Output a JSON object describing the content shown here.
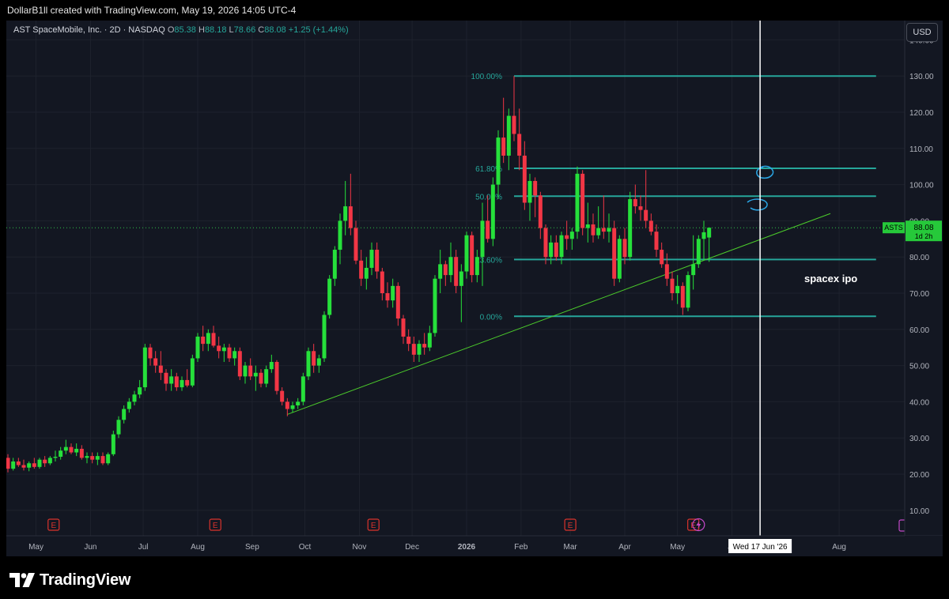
{
  "header": {
    "attribution": "DollarB1ll created with TradingView.com, May 19, 2026 14:05 UTC-4"
  },
  "legend": {
    "symbol": "AST SpaceMobile, Inc. · 2D · NASDAQ",
    "open_label": "O",
    "open": "85.38",
    "high_label": "H",
    "high": "88.18",
    "low_label": "L",
    "low": "78.66",
    "close_label": "C",
    "close": "88.08",
    "change": "+1.25 (+1.44%)"
  },
  "currency_button": "USD",
  "price_badge": {
    "ticker": "ASTS",
    "price": "88.08",
    "countdown": "1d 2h"
  },
  "crosshair_date": "Wed 17 Jun '26",
  "annotation": "spacex ipo",
  "footer": {
    "brand": "TradingView"
  },
  "colors": {
    "background": "#131722",
    "up": "#26e03b",
    "down": "#f23645",
    "fib": "#26a69a",
    "trendline": "#4ccd2b",
    "grid": "#1e222d"
  },
  "chart_data": {
    "type": "candlestick",
    "symbol": "ASTS",
    "y_axis": {
      "range": [
        0,
        145
      ],
      "ticks": [
        10,
        20,
        30,
        40,
        50,
        60,
        70,
        80,
        90,
        100,
        110,
        120,
        130,
        140
      ],
      "tick_format": "0.00"
    },
    "x_axis": {
      "range": [
        "2025-04-15",
        "2026-08-23"
      ],
      "ticks": [
        {
          "date": "2025-05-01",
          "label": "May"
        },
        {
          "date": "2025-06-01",
          "label": "Jun"
        },
        {
          "date": "2025-07-01",
          "label": "Jul"
        },
        {
          "date": "2025-08-01",
          "label": "Aug"
        },
        {
          "date": "2025-09-01",
          "label": "Sep"
        },
        {
          "date": "2025-10-01",
          "label": "Oct"
        },
        {
          "date": "2025-11-01",
          "label": "Nov"
        },
        {
          "date": "2025-12-01",
          "label": "Dec"
        },
        {
          "date": "2026-01-01",
          "label": "2026"
        },
        {
          "date": "2026-02-01",
          "label": "Feb"
        },
        {
          "date": "2026-03-01",
          "label": "Mar"
        },
        {
          "date": "2026-04-01",
          "label": "Apr"
        },
        {
          "date": "2026-05-01",
          "label": "May"
        },
        {
          "date": "2026-06-01",
          "label": "Ju"
        },
        {
          "date": "2026-08-01",
          "label": "Aug"
        }
      ]
    },
    "candles": [
      {
        "date": "2025-04-15",
        "o": 24.5,
        "h": 25.5,
        "l": 20.5,
        "c": 21.5
      },
      {
        "date": "2025-04-18",
        "o": 21.5,
        "h": 24.5,
        "l": 21.0,
        "c": 23.5
      },
      {
        "date": "2025-04-21",
        "o": 23.5,
        "h": 24.5,
        "l": 22.0,
        "c": 22.5
      },
      {
        "date": "2025-04-24",
        "o": 22.5,
        "h": 24.0,
        "l": 21.0,
        "c": 21.8
      },
      {
        "date": "2025-04-27",
        "o": 21.8,
        "h": 23.5,
        "l": 20.8,
        "c": 23.0
      },
      {
        "date": "2025-04-30",
        "o": 23.0,
        "h": 24.5,
        "l": 21.5,
        "c": 22.0
      },
      {
        "date": "2025-05-03",
        "o": 22.0,
        "h": 24.5,
        "l": 21.5,
        "c": 24.0
      },
      {
        "date": "2025-05-06",
        "o": 24.0,
        "h": 25.0,
        "l": 22.0,
        "c": 23.0
      },
      {
        "date": "2025-05-09",
        "o": 23.0,
        "h": 25.0,
        "l": 22.5,
        "c": 24.5
      },
      {
        "date": "2025-05-12",
        "o": 24.5,
        "h": 26.5,
        "l": 23.5,
        "c": 24.8
      },
      {
        "date": "2025-05-15",
        "o": 24.8,
        "h": 27.5,
        "l": 24.0,
        "c": 26.5
      },
      {
        "date": "2025-05-18",
        "o": 26.5,
        "h": 29.5,
        "l": 25.5,
        "c": 27.5
      },
      {
        "date": "2025-05-21",
        "o": 27.5,
        "h": 28.5,
        "l": 25.5,
        "c": 26.0
      },
      {
        "date": "2025-05-24",
        "o": 26.0,
        "h": 28.5,
        "l": 25.0,
        "c": 27.0
      },
      {
        "date": "2025-05-27",
        "o": 27.0,
        "h": 28.0,
        "l": 24.0,
        "c": 24.5
      },
      {
        "date": "2025-05-30",
        "o": 24.5,
        "h": 26.0,
        "l": 23.0,
        "c": 25.0
      },
      {
        "date": "2025-06-02",
        "o": 25.0,
        "h": 26.0,
        "l": 23.0,
        "c": 24.0
      },
      {
        "date": "2025-06-05",
        "o": 24.0,
        "h": 26.0,
        "l": 22.5,
        "c": 25.0
      },
      {
        "date": "2025-06-08",
        "o": 25.0,
        "h": 26.0,
        "l": 22.5,
        "c": 23.0
      },
      {
        "date": "2025-06-11",
        "o": 23.0,
        "h": 26.0,
        "l": 22.5,
        "c": 25.5
      },
      {
        "date": "2025-06-14",
        "o": 25.5,
        "h": 32.0,
        "l": 25.0,
        "c": 31.0
      },
      {
        "date": "2025-06-17",
        "o": 31.0,
        "h": 36.0,
        "l": 30.0,
        "c": 35.0
      },
      {
        "date": "2025-06-20",
        "o": 35.0,
        "h": 39.0,
        "l": 34.0,
        "c": 38.0
      },
      {
        "date": "2025-06-23",
        "o": 38.0,
        "h": 41.0,
        "l": 37.0,
        "c": 40.0
      },
      {
        "date": "2025-06-26",
        "o": 40.0,
        "h": 43.0,
        "l": 39.0,
        "c": 42.0
      },
      {
        "date": "2025-06-29",
        "o": 42.0,
        "h": 46.0,
        "l": 41.0,
        "c": 44.0
      },
      {
        "date": "2025-07-02",
        "o": 44.0,
        "h": 56.0,
        "l": 43.0,
        "c": 55.0
      },
      {
        "date": "2025-07-05",
        "o": 55.0,
        "h": 56.0,
        "l": 50.0,
        "c": 52.0
      },
      {
        "date": "2025-07-08",
        "o": 52.0,
        "h": 54.0,
        "l": 48.0,
        "c": 50.0
      },
      {
        "date": "2025-07-11",
        "o": 50.0,
        "h": 54.0,
        "l": 46.0,
        "c": 48.0
      },
      {
        "date": "2025-07-14",
        "o": 48.0,
        "h": 49.0,
        "l": 43.0,
        "c": 45.0
      },
      {
        "date": "2025-07-17",
        "o": 45.0,
        "h": 49.0,
        "l": 43.0,
        "c": 47.0
      },
      {
        "date": "2025-07-20",
        "o": 47.0,
        "h": 48.0,
        "l": 43.0,
        "c": 44.0
      },
      {
        "date": "2025-07-23",
        "o": 44.0,
        "h": 47.0,
        "l": 43.0,
        "c": 46.0
      },
      {
        "date": "2025-07-26",
        "o": 46.0,
        "h": 49.0,
        "l": 44.0,
        "c": 44.5
      },
      {
        "date": "2025-07-29",
        "o": 44.5,
        "h": 53.0,
        "l": 44.0,
        "c": 52.0
      },
      {
        "date": "2025-08-01",
        "o": 52.0,
        "h": 59.0,
        "l": 51.0,
        "c": 58.0
      },
      {
        "date": "2025-08-04",
        "o": 58.0,
        "h": 61.0,
        "l": 54.0,
        "c": 56.0
      },
      {
        "date": "2025-08-07",
        "o": 56.0,
        "h": 60.0,
        "l": 54.0,
        "c": 59.0
      },
      {
        "date": "2025-08-10",
        "o": 59.0,
        "h": 61.0,
        "l": 55.0,
        "c": 55.5
      },
      {
        "date": "2025-08-13",
        "o": 55.5,
        "h": 58.0,
        "l": 52.0,
        "c": 54.0
      },
      {
        "date": "2025-08-16",
        "o": 54.0,
        "h": 56.0,
        "l": 51.0,
        "c": 55.0
      },
      {
        "date": "2025-08-19",
        "o": 55.0,
        "h": 56.0,
        "l": 51.0,
        "c": 52.0
      },
      {
        "date": "2025-08-22",
        "o": 52.0,
        "h": 55.0,
        "l": 50.0,
        "c": 54.0
      },
      {
        "date": "2025-08-25",
        "o": 54.0,
        "h": 55.0,
        "l": 46.0,
        "c": 47.0
      },
      {
        "date": "2025-08-28",
        "o": 47.0,
        "h": 51.0,
        "l": 45.0,
        "c": 50.0
      },
      {
        "date": "2025-08-31",
        "o": 50.0,
        "h": 52.0,
        "l": 46.0,
        "c": 47.0
      },
      {
        "date": "2025-09-03",
        "o": 47.0,
        "h": 50.0,
        "l": 43.0,
        "c": 48.0
      },
      {
        "date": "2025-09-06",
        "o": 48.0,
        "h": 49.0,
        "l": 44.0,
        "c": 45.0
      },
      {
        "date": "2025-09-09",
        "o": 45.0,
        "h": 50.0,
        "l": 44.0,
        "c": 49.0
      },
      {
        "date": "2025-09-12",
        "o": 49.0,
        "h": 53.0,
        "l": 48.0,
        "c": 51.0
      },
      {
        "date": "2025-09-15",
        "o": 51.0,
        "h": 51.5,
        "l": 42.0,
        "c": 43.0
      },
      {
        "date": "2025-09-18",
        "o": 43.0,
        "h": 44.0,
        "l": 39.0,
        "c": 40.0
      },
      {
        "date": "2025-09-21",
        "o": 40.0,
        "h": 41.0,
        "l": 36.0,
        "c": 38.0
      },
      {
        "date": "2025-09-24",
        "o": 38.0,
        "h": 40.0,
        "l": 37.0,
        "c": 39.0
      },
      {
        "date": "2025-09-27",
        "o": 39.0,
        "h": 41.0,
        "l": 38.0,
        "c": 40.0
      },
      {
        "date": "2025-09-30",
        "o": 40.0,
        "h": 48.0,
        "l": 39.0,
        "c": 47.0
      },
      {
        "date": "2025-10-03",
        "o": 47.0,
        "h": 55.0,
        "l": 46.0,
        "c": 54.0
      },
      {
        "date": "2025-10-06",
        "o": 54.0,
        "h": 56.0,
        "l": 48.0,
        "c": 50.0
      },
      {
        "date": "2025-10-09",
        "o": 50.0,
        "h": 53.0,
        "l": 48.0,
        "c": 52.0
      },
      {
        "date": "2025-10-12",
        "o": 52.0,
        "h": 65.0,
        "l": 51.0,
        "c": 64.0
      },
      {
        "date": "2025-10-15",
        "o": 64.0,
        "h": 75.0,
        "l": 63.0,
        "c": 74.0
      },
      {
        "date": "2025-10-18",
        "o": 74.0,
        "h": 83.0,
        "l": 72.0,
        "c": 82.0
      },
      {
        "date": "2025-10-21",
        "o": 82.0,
        "h": 92.0,
        "l": 78.0,
        "c": 90.0
      },
      {
        "date": "2025-10-24",
        "o": 90.0,
        "h": 101.0,
        "l": 86.0,
        "c": 94.0
      },
      {
        "date": "2025-10-27",
        "o": 94.0,
        "h": 103.0,
        "l": 86.0,
        "c": 88.0
      },
      {
        "date": "2025-10-30",
        "o": 88.0,
        "h": 90.0,
        "l": 78.0,
        "c": 79.0
      },
      {
        "date": "2025-11-02",
        "o": 79.0,
        "h": 82.0,
        "l": 72.0,
        "c": 74.0
      },
      {
        "date": "2025-11-05",
        "o": 74.0,
        "h": 80.0,
        "l": 71.0,
        "c": 77.0
      },
      {
        "date": "2025-11-08",
        "o": 77.0,
        "h": 84.0,
        "l": 75.0,
        "c": 82.0
      },
      {
        "date": "2025-11-11",
        "o": 82.0,
        "h": 84.0,
        "l": 74.0,
        "c": 76.0
      },
      {
        "date": "2025-11-14",
        "o": 76.0,
        "h": 77.0,
        "l": 68.0,
        "c": 70.0
      },
      {
        "date": "2025-11-17",
        "o": 70.0,
        "h": 73.0,
        "l": 66.0,
        "c": 68.0
      },
      {
        "date": "2025-11-20",
        "o": 68.0,
        "h": 74.0,
        "l": 66.0,
        "c": 72.0
      },
      {
        "date": "2025-11-23",
        "o": 72.0,
        "h": 73.0,
        "l": 61.0,
        "c": 63.0
      },
      {
        "date": "2025-11-26",
        "o": 63.0,
        "h": 64.0,
        "l": 56.0,
        "c": 58.0
      },
      {
        "date": "2025-11-29",
        "o": 58.0,
        "h": 60.0,
        "l": 54.0,
        "c": 56.0
      },
      {
        "date": "2025-12-02",
        "o": 56.0,
        "h": 58.0,
        "l": 51.0,
        "c": 53.0
      },
      {
        "date": "2025-12-05",
        "o": 53.0,
        "h": 57.0,
        "l": 51.0,
        "c": 56.0
      },
      {
        "date": "2025-12-08",
        "o": 56.0,
        "h": 59.0,
        "l": 53.0,
        "c": 55.0
      },
      {
        "date": "2025-12-11",
        "o": 55.0,
        "h": 61.0,
        "l": 54.0,
        "c": 59.0
      },
      {
        "date": "2025-12-14",
        "o": 59.0,
        "h": 75.0,
        "l": 58.0,
        "c": 74.0
      },
      {
        "date": "2025-12-17",
        "o": 74.0,
        "h": 82.0,
        "l": 70.0,
        "c": 78.0
      },
      {
        "date": "2025-12-20",
        "o": 78.0,
        "h": 79.0,
        "l": 72.0,
        "c": 75.0
      },
      {
        "date": "2025-12-23",
        "o": 75.0,
        "h": 84.0,
        "l": 73.0,
        "c": 80.0
      },
      {
        "date": "2025-12-26",
        "o": 80.0,
        "h": 82.0,
        "l": 70.0,
        "c": 72.0
      },
      {
        "date": "2025-12-29",
        "o": 72.0,
        "h": 78.0,
        "l": 62.0,
        "c": 76.0
      },
      {
        "date": "2026-01-01",
        "o": 76.0,
        "h": 87.0,
        "l": 74.0,
        "c": 86.0
      },
      {
        "date": "2026-01-04",
        "o": 86.0,
        "h": 87.0,
        "l": 73.0,
        "c": 75.0
      },
      {
        "date": "2026-01-07",
        "o": 75.0,
        "h": 82.0,
        "l": 73.0,
        "c": 80.0
      },
      {
        "date": "2026-01-10",
        "o": 80.0,
        "h": 95.0,
        "l": 72.0,
        "c": 90.0
      },
      {
        "date": "2026-01-13",
        "o": 90.0,
        "h": 97.0,
        "l": 84.0,
        "c": 85.0
      },
      {
        "date": "2026-01-16",
        "o": 85.0,
        "h": 102.0,
        "l": 83.0,
        "c": 100.0
      },
      {
        "date": "2026-01-19",
        "o": 100.0,
        "h": 115.0,
        "l": 96.0,
        "c": 113.0
      },
      {
        "date": "2026-01-22",
        "o": 113.0,
        "h": 124.0,
        "l": 106.0,
        "c": 108.0
      },
      {
        "date": "2026-01-25",
        "o": 108.0,
        "h": 121.0,
        "l": 104.0,
        "c": 119.0
      },
      {
        "date": "2026-01-28",
        "o": 119.0,
        "h": 130.0,
        "l": 112.0,
        "c": 114.0
      },
      {
        "date": "2026-01-31",
        "o": 114.0,
        "h": 121.0,
        "l": 104.0,
        "c": 108.0
      },
      {
        "date": "2026-02-03",
        "o": 108.0,
        "h": 112.0,
        "l": 93.0,
        "c": 95.0
      },
      {
        "date": "2026-02-06",
        "o": 95.0,
        "h": 103.0,
        "l": 90.0,
        "c": 101.0
      },
      {
        "date": "2026-02-09",
        "o": 101.0,
        "h": 102.0,
        "l": 91.0,
        "c": 97.0
      },
      {
        "date": "2026-02-12",
        "o": 97.0,
        "h": 98.0,
        "l": 85.0,
        "c": 88.0
      },
      {
        "date": "2026-02-15",
        "o": 88.0,
        "h": 89.0,
        "l": 78.0,
        "c": 80.0
      },
      {
        "date": "2026-02-18",
        "o": 80.0,
        "h": 86.0,
        "l": 78.0,
        "c": 84.0
      },
      {
        "date": "2026-02-21",
        "o": 84.0,
        "h": 86.0,
        "l": 79.0,
        "c": 80.0
      },
      {
        "date": "2026-02-24",
        "o": 80.0,
        "h": 87.0,
        "l": 78.0,
        "c": 86.0
      },
      {
        "date": "2026-02-27",
        "o": 86.0,
        "h": 90.0,
        "l": 82.0,
        "c": 85.0
      },
      {
        "date": "2026-03-02",
        "o": 85.0,
        "h": 88.0,
        "l": 82.0,
        "c": 87.0
      },
      {
        "date": "2026-03-05",
        "o": 87.0,
        "h": 105.0,
        "l": 85.0,
        "c": 103.0
      },
      {
        "date": "2026-03-08",
        "o": 103.0,
        "h": 104.0,
        "l": 86.0,
        "c": 88.0
      },
      {
        "date": "2026-03-11",
        "o": 88.0,
        "h": 95.0,
        "l": 84.0,
        "c": 89.0
      },
      {
        "date": "2026-03-14",
        "o": 89.0,
        "h": 92.0,
        "l": 84.0,
        "c": 86.0
      },
      {
        "date": "2026-03-17",
        "o": 86.0,
        "h": 94.0,
        "l": 85.0,
        "c": 88.0
      },
      {
        "date": "2026-03-20",
        "o": 88.0,
        "h": 97.0,
        "l": 85.0,
        "c": 87.0
      },
      {
        "date": "2026-03-23",
        "o": 87.0,
        "h": 92.0,
        "l": 84.0,
        "c": 88.0
      },
      {
        "date": "2026-03-26",
        "o": 88.0,
        "h": 90.0,
        "l": 72.0,
        "c": 74.0
      },
      {
        "date": "2026-03-29",
        "o": 74.0,
        "h": 86.0,
        "l": 73.0,
        "c": 85.0
      },
      {
        "date": "2026-04-01",
        "o": 85.0,
        "h": 88.0,
        "l": 78.0,
        "c": 80.0
      },
      {
        "date": "2026-04-04",
        "o": 80.0,
        "h": 98.0,
        "l": 79.0,
        "c": 96.0
      },
      {
        "date": "2026-04-07",
        "o": 96.0,
        "h": 100.0,
        "l": 92.0,
        "c": 94.0
      },
      {
        "date": "2026-04-10",
        "o": 94.0,
        "h": 97.0,
        "l": 90.0,
        "c": 93.0
      },
      {
        "date": "2026-04-13",
        "o": 93.0,
        "h": 104.0,
        "l": 88.0,
        "c": 90.0
      },
      {
        "date": "2026-04-16",
        "o": 90.0,
        "h": 92.0,
        "l": 86.0,
        "c": 87.0
      },
      {
        "date": "2026-04-19",
        "o": 87.0,
        "h": 89.0,
        "l": 80.0,
        "c": 82.0
      },
      {
        "date": "2026-04-22",
        "o": 82.0,
        "h": 84.0,
        "l": 77.0,
        "c": 78.0
      },
      {
        "date": "2026-04-25",
        "o": 78.0,
        "h": 81.0,
        "l": 72.0,
        "c": 74.0
      },
      {
        "date": "2026-04-28",
        "o": 74.0,
        "h": 76.0,
        "l": 68.0,
        "c": 70.0
      },
      {
        "date": "2026-05-01",
        "o": 70.0,
        "h": 75.0,
        "l": 67.0,
        "c": 72.0
      },
      {
        "date": "2026-05-04",
        "o": 72.0,
        "h": 73.0,
        "l": 64.0,
        "c": 66.0
      },
      {
        "date": "2026-05-07",
        "o": 66.0,
        "h": 76.0,
        "l": 65.0,
        "c": 75.0
      },
      {
        "date": "2026-05-10",
        "o": 75.0,
        "h": 86.0,
        "l": 71.0,
        "c": 78.0
      },
      {
        "date": "2026-05-13",
        "o": 78.0,
        "h": 86.0,
        "l": 77.0,
        "c": 85.0
      },
      {
        "date": "2026-05-16",
        "o": 85.0,
        "h": 90.0,
        "l": 79.0,
        "c": 86.83
      },
      {
        "date": "2026-05-19",
        "o": 85.38,
        "h": 88.18,
        "l": 78.66,
        "c": 88.08
      }
    ],
    "fib_levels": [
      {
        "label": "100.00%",
        "price": 130.0
      },
      {
        "label": "61.80%",
        "price": 104.5
      },
      {
        "label": "50.00%",
        "price": 96.8
      },
      {
        "label": "23.60%",
        "price": 79.3
      },
      {
        "label": "0.00%",
        "price": 63.6
      }
    ],
    "fib_x_range": [
      "2026-01-28",
      "2026-08-22"
    ],
    "trendline": {
      "from": {
        "date": "2025-09-21",
        "price": 36.5
      },
      "to": {
        "date": "2026-07-27",
        "price": 92.0
      }
    },
    "vertical_marker": {
      "date": "2026-06-17"
    },
    "earnings_markers": [
      "2025-05-11",
      "2025-08-11",
      "2025-11-09",
      "2026-03-01",
      "2026-05-10"
    ],
    "dividend_marker": "2026-05-13",
    "last_price": 88.08
  }
}
